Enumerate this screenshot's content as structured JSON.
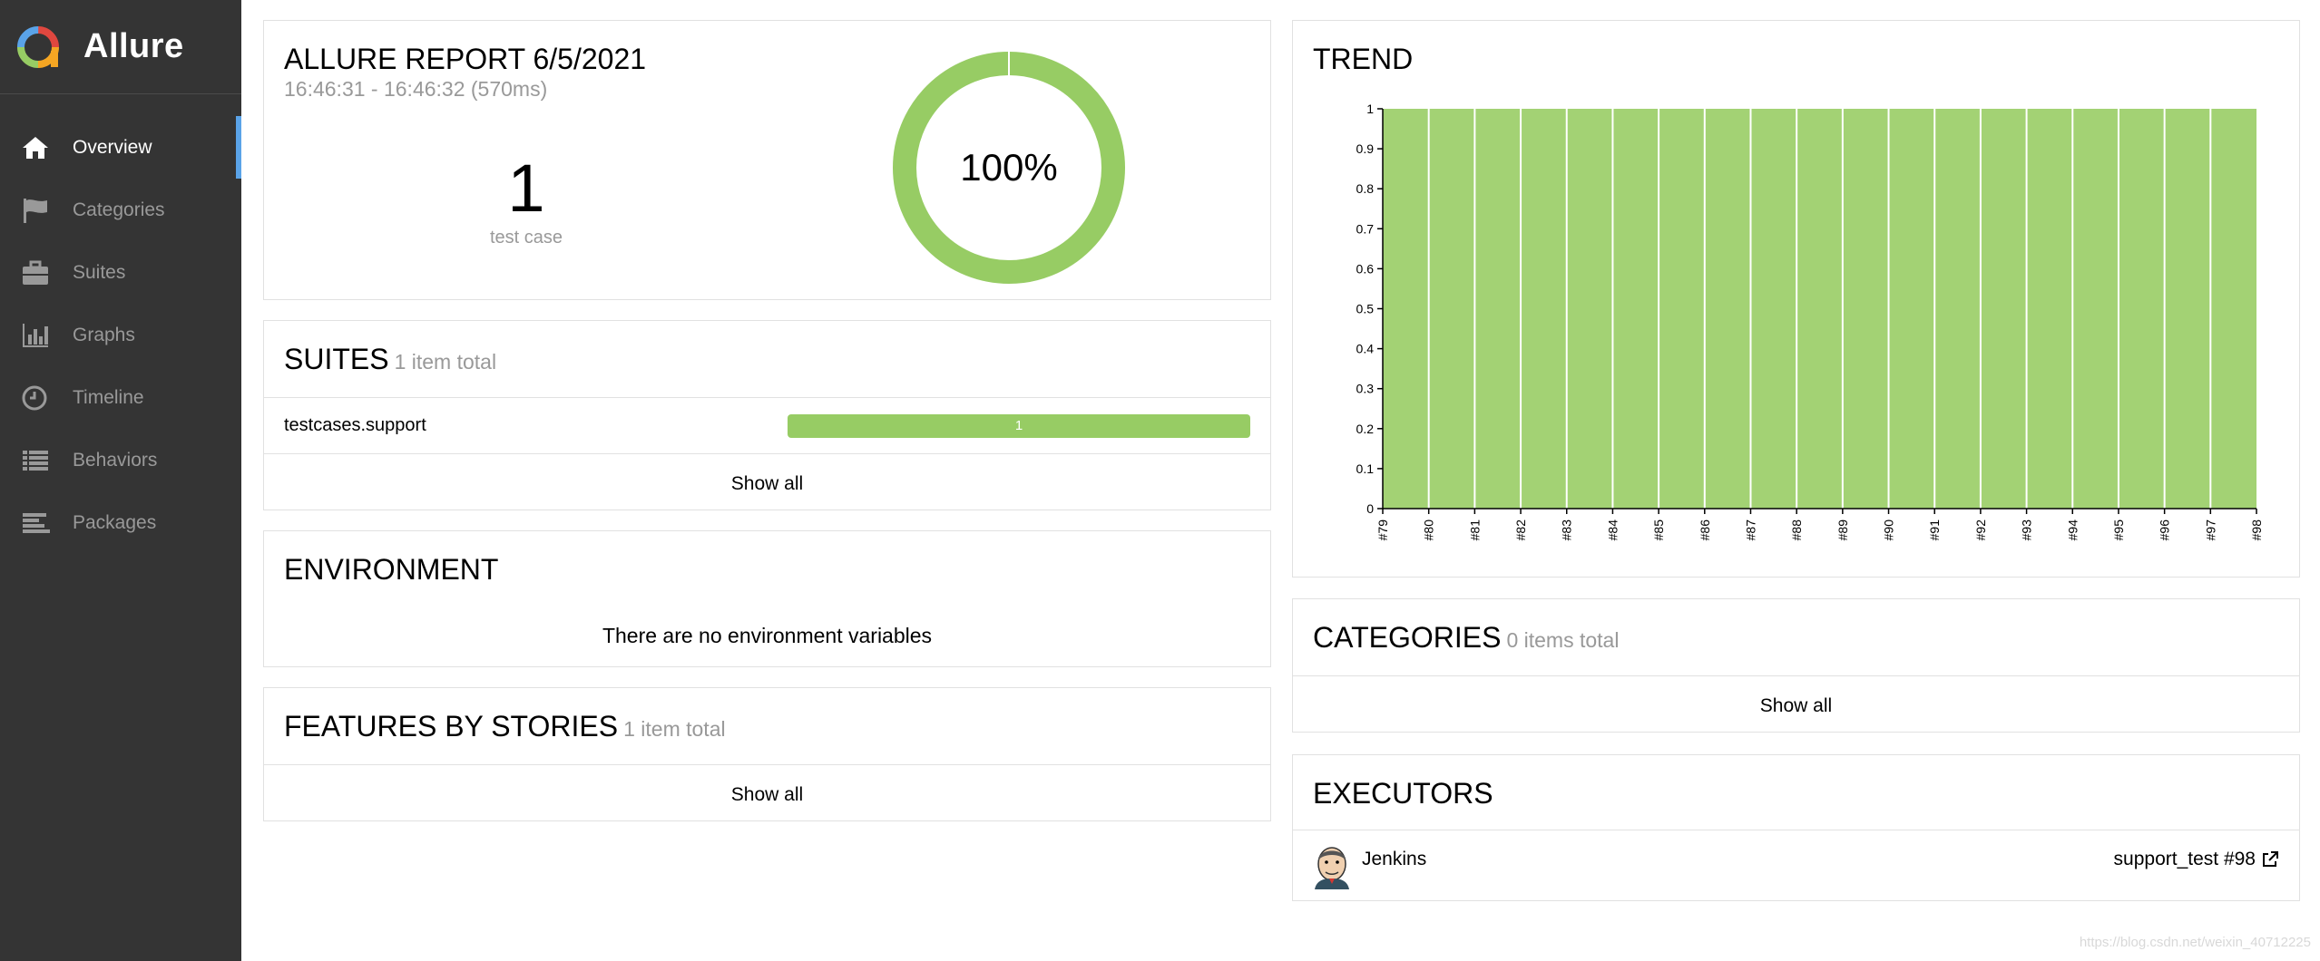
{
  "app": {
    "name": "Allure"
  },
  "sidebar": {
    "items": [
      {
        "label": "Overview",
        "icon": "home-icon",
        "active": true
      },
      {
        "label": "Categories",
        "icon": "flag-icon",
        "active": false
      },
      {
        "label": "Suites",
        "icon": "briefcase-icon",
        "active": false
      },
      {
        "label": "Graphs",
        "icon": "bar-chart-icon",
        "active": false
      },
      {
        "label": "Timeline",
        "icon": "clock-icon",
        "active": false
      },
      {
        "label": "Behaviors",
        "icon": "list-icon",
        "active": false
      },
      {
        "label": "Packages",
        "icon": "align-left-icon",
        "active": false
      }
    ]
  },
  "summary": {
    "title": "ALLURE REPORT 6/5/2021",
    "time": "16:46:31 - 16:46:32 (570ms)",
    "count": "1",
    "count_label": "test case",
    "percent_label": "100%",
    "passed_fraction": 1.0,
    "color": "#97cc64"
  },
  "suites": {
    "title": "SUITES",
    "count": "1 item total",
    "rows": [
      {
        "name": "testcases.support",
        "value": "1",
        "fraction": 1.0
      }
    ],
    "show_all": "Show all"
  },
  "environment": {
    "title": "ENVIRONMENT",
    "empty": "There are no environment variables"
  },
  "features": {
    "title": "FEATURES BY STORIES",
    "count": "1 item total",
    "show_all": "Show all"
  },
  "trend": {
    "title": "TREND"
  },
  "chart_data": {
    "type": "area",
    "title": "TREND",
    "x": [
      "#79",
      "#80",
      "#81",
      "#82",
      "#83",
      "#84",
      "#85",
      "#86",
      "#87",
      "#88",
      "#89",
      "#90",
      "#91",
      "#92",
      "#93",
      "#94",
      "#95",
      "#96",
      "#97",
      "#98"
    ],
    "series": [
      {
        "values": [
          1,
          1,
          1,
          1,
          1,
          1,
          1,
          1,
          1,
          1,
          1,
          1,
          1,
          1,
          1,
          1,
          1,
          1,
          1,
          1
        ],
        "color": "#a3d274"
      }
    ],
    "yticks": [
      "0",
      "0.1",
      "0.2",
      "0.3",
      "0.4",
      "0.5",
      "0.6",
      "0.7",
      "0.8",
      "0.9",
      "1"
    ],
    "ylim": [
      0,
      1
    ],
    "grid": false
  },
  "categories": {
    "title": "CATEGORIES",
    "count": "0 items total",
    "show_all": "Show all"
  },
  "executors": {
    "title": "EXECUTORS",
    "name": "Jenkins",
    "build": "support_test #98"
  },
  "watermark": "https://blog.csdn.net/weixin_40712225"
}
